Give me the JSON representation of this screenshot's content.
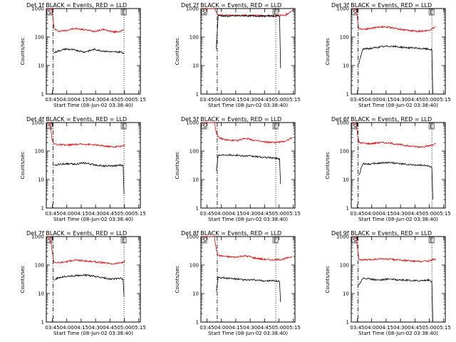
{
  "figure": {
    "start_time_label": "Start Time (08-Jun-02 03:38:40)",
    "ylabel": "Counts/sec",
    "marker_s": "S",
    "marker_e": "E",
    "x_ticks": [
      "03:45",
      "04:00",
      "04:15",
      "04:30",
      "04:45",
      "05:00",
      "05:15"
    ],
    "y_ticks": [
      "1",
      "10",
      "100",
      "1000"
    ],
    "colors": {
      "events": "#000000",
      "lld": "#e00000",
      "axes": "#000000"
    }
  },
  "chart_data": [
    {
      "type": "line",
      "title": "Det 1f BLACK = Events, RED = LLD",
      "xlabel": "Start Time (08-Jun-02 03:38:40)",
      "ylabel": "Counts/sec",
      "x_unit": "minutes after 03:38:40",
      "xlim": [
        0,
        98
      ],
      "ylim": [
        1,
        1000
      ],
      "log_y": true,
      "x_ticks": [
        "03:45",
        "04:00",
        "04:15",
        "04:30",
        "04:45",
        "05:00",
        "05:15"
      ],
      "markers": {
        "S": 7,
        "E": 81
      },
      "series": [
        {
          "name": "LLD",
          "x": [
            0,
            6,
            7,
            8,
            12,
            20,
            30,
            40,
            50,
            60,
            70,
            78,
            80,
            81
          ],
          "y": [
            1000,
            1000,
            450,
            200,
            160,
            170,
            200,
            180,
            160,
            185,
            150,
            160,
            175,
            180
          ]
        },
        {
          "name": "Events",
          "x": [
            8,
            12,
            20,
            30,
            40,
            50,
            60,
            70,
            78,
            80,
            81
          ],
          "y": [
            28,
            32,
            38,
            35,
            30,
            37,
            32,
            30,
            30,
            28,
            26
          ]
        }
      ]
    },
    {
      "type": "line",
      "title": "Det 2f BLACK = Events, RED = LLD",
      "xlabel": "Start Time (08-Jun-02 03:38:40)",
      "ylabel": "Counts/sec",
      "x_unit": "minutes after 03:38:40",
      "xlim": [
        0,
        98
      ],
      "ylim": [
        1,
        1000
      ],
      "log_y": true,
      "x_ticks": [
        "03:45",
        "04:00",
        "04:15",
        "04:30",
        "04:45",
        "05:00",
        "05:15"
      ],
      "markers": {
        "S": 17,
        "E": 78
      },
      "series": [
        {
          "name": "LLD",
          "x": [
            0,
            14,
            15,
            16,
            17,
            18,
            25,
            35,
            45,
            55,
            65,
            75,
            82,
            88,
            92,
            96
          ],
          "y": [
            1000,
            1000,
            900,
            700,
            620,
            600,
            580,
            570,
            580,
            570,
            560,
            560,
            560,
            600,
            700,
            900
          ]
        },
        {
          "name": "Events",
          "x": [
            16,
            18,
            25,
            35,
            45,
            55,
            65,
            75,
            80,
            82,
            83
          ],
          "y": [
            40,
            580,
            540,
            550,
            560,
            550,
            545,
            550,
            545,
            550,
            8
          ]
        }
      ]
    },
    {
      "type": "line",
      "title": "Det 3f BLACK = Events, RED = LLD",
      "xlabel": "Start Time (08-Jun-02 03:38:40)",
      "ylabel": "Counts/sec",
      "x_unit": "minutes after 03:38:40",
      "xlim": [
        0,
        98
      ],
      "ylim": [
        1,
        1000
      ],
      "log_y": true,
      "x_ticks": [
        "03:45",
        "04:00",
        "04:15",
        "04:30",
        "04:45",
        "05:00",
        "05:15"
      ],
      "markers": {
        "S": 7,
        "E": 84
      },
      "series": [
        {
          "name": "LLD",
          "x": [
            0,
            5,
            6,
            7,
            8,
            12,
            20,
            30,
            40,
            50,
            60,
            70,
            80,
            86,
            88
          ],
          "y": [
            1000,
            1000,
            600,
            300,
            200,
            190,
            200,
            230,
            220,
            190,
            170,
            160,
            170,
            210,
            230
          ]
        },
        {
          "name": "Events",
          "x": [
            8,
            12,
            20,
            30,
            40,
            50,
            60,
            70,
            80,
            84,
            85
          ],
          "y": [
            12,
            38,
            40,
            45,
            48,
            45,
            42,
            40,
            38,
            36,
            1
          ]
        }
      ]
    },
    {
      "type": "line",
      "title": "Det 4f BLACK = Events, RED = LLD",
      "xlabel": "Start Time (08-Jun-02 03:38:40)",
      "ylabel": "Counts/sec",
      "x_unit": "minutes after 03:38:40",
      "xlim": [
        0,
        98
      ],
      "ylim": [
        1,
        1000
      ],
      "log_y": true,
      "x_ticks": [
        "03:45",
        "04:00",
        "04:15",
        "04:30",
        "04:45",
        "05:00",
        "05:15"
      ],
      "markers": {
        "S": 7,
        "E": 81
      },
      "series": [
        {
          "name": "LLD",
          "x": [
            0,
            4,
            5,
            6,
            8,
            12,
            20,
            30,
            40,
            50,
            60,
            70,
            80,
            82
          ],
          "y": [
            1000,
            1000,
            500,
            250,
            180,
            170,
            160,
            170,
            175,
            165,
            150,
            140,
            150,
            160
          ]
        },
        {
          "name": "Events",
          "x": [
            8,
            12,
            20,
            30,
            40,
            50,
            60,
            70,
            78,
            80,
            81
          ],
          "y": [
            30,
            34,
            36,
            35,
            38,
            33,
            30,
            30,
            32,
            31,
            3
          ]
        }
      ]
    },
    {
      "type": "line",
      "title": "Det 5f BLACK = Events, RED = LLD",
      "xlabel": "Start Time (08-Jun-02 03:38:40)",
      "ylabel": "Counts/sec",
      "x_unit": "minutes after 03:38:40",
      "xlim": [
        0,
        98
      ],
      "ylim": [
        1,
        1000
      ],
      "log_y": true,
      "x_ticks": [
        "03:45",
        "04:00",
        "04:15",
        "04:30",
        "04:45",
        "05:00",
        "05:15"
      ],
      "markers": {
        "S": 17,
        "E": 78
      },
      "series": [
        {
          "name": "LLD",
          "x": [
            0,
            14,
            15,
            16,
            18,
            25,
            35,
            40,
            45,
            50,
            55,
            65,
            75,
            85,
            90,
            95
          ],
          "y": [
            1000,
            1000,
            700,
            450,
            300,
            250,
            230,
            240,
            280,
            270,
            240,
            210,
            200,
            210,
            240,
            300
          ]
        },
        {
          "name": "Events",
          "x": [
            16,
            18,
            25,
            35,
            45,
            55,
            65,
            75,
            80,
            82,
            83
          ],
          "y": [
            20,
            70,
            75,
            72,
            68,
            65,
            60,
            58,
            55,
            52,
            7
          ]
        }
      ]
    },
    {
      "type": "line",
      "title": "Det 6f BLACK = Events, RED = LLD",
      "xlabel": "Start Time (08-Jun-02 03:38:40)",
      "ylabel": "Counts/sec",
      "x_unit": "minutes after 03:38:40",
      "xlim": [
        0,
        98
      ],
      "ylim": [
        1,
        1000
      ],
      "log_y": true,
      "x_ticks": [
        "03:45",
        "04:00",
        "04:15",
        "04:30",
        "04:45",
        "05:00",
        "05:15"
      ],
      "markers": {
        "S": 7,
        "E": 84
      },
      "series": [
        {
          "name": "LLD",
          "x": [
            0,
            5,
            6,
            7,
            8,
            12,
            20,
            30,
            40,
            50,
            60,
            70,
            80,
            86,
            88
          ],
          "y": [
            1000,
            1000,
            550,
            300,
            200,
            190,
            180,
            200,
            190,
            170,
            150,
            140,
            150,
            170,
            180
          ]
        },
        {
          "name": "Events",
          "x": [
            8,
            12,
            20,
            30,
            40,
            50,
            60,
            70,
            80,
            84,
            85
          ],
          "y": [
            14,
            36,
            35,
            38,
            40,
            36,
            33,
            32,
            30,
            28,
            2
          ]
        }
      ]
    },
    {
      "type": "line",
      "title": "Det 7f BLACK = Events, RED = LLD",
      "xlabel": "Start Time (08-Jun-02 03:38:40)",
      "ylabel": "Counts/sec",
      "x_unit": "minutes after 03:38:40",
      "xlim": [
        0,
        98
      ],
      "ylim": [
        1,
        1000
      ],
      "log_y": true,
      "x_ticks": [
        "03:45",
        "04:00",
        "04:15",
        "04:30",
        "04:45",
        "05:00",
        "05:15"
      ],
      "markers": {
        "S": 7,
        "E": 81
      },
      "series": [
        {
          "name": "LLD",
          "x": [
            0,
            4,
            5,
            6,
            8,
            12,
            20,
            30,
            40,
            50,
            60,
            70,
            80,
            82
          ],
          "y": [
            1000,
            1000,
            600,
            300,
            130,
            120,
            130,
            150,
            140,
            130,
            120,
            110,
            125,
            130
          ]
        },
        {
          "name": "Events",
          "x": [
            8,
            12,
            20,
            30,
            40,
            50,
            60,
            70,
            78,
            80,
            81
          ],
          "y": [
            30,
            35,
            40,
            42,
            45,
            40,
            35,
            32,
            35,
            30,
            8
          ]
        }
      ]
    },
    {
      "type": "line",
      "title": "Det 8f BLACK = Events, RED = LLD",
      "xlabel": "Start Time (08-Jun-02 03:38:40)",
      "ylabel": "Counts/sec",
      "x_unit": "minutes after 03:38:40",
      "xlim": [
        0,
        98
      ],
      "ylim": [
        1,
        1000
      ],
      "log_y": true,
      "x_ticks": [
        "03:45",
        "04:00",
        "04:15",
        "04:30",
        "04:45",
        "05:00",
        "05:15"
      ],
      "markers": {
        "S": 17,
        "E": 78
      },
      "series": [
        {
          "name": "LLD",
          "x": [
            0,
            14,
            15,
            16,
            18,
            25,
            35,
            45,
            50,
            55,
            65,
            75,
            85,
            92,
            95
          ],
          "y": [
            1000,
            1000,
            600,
            350,
            220,
            200,
            190,
            210,
            200,
            180,
            160,
            150,
            160,
            185,
            200
          ]
        },
        {
          "name": "Events",
          "x": [
            16,
            18,
            25,
            35,
            45,
            55,
            65,
            75,
            80,
            82,
            83
          ],
          "y": [
            12,
            38,
            35,
            33,
            30,
            30,
            28,
            28,
            27,
            27,
            5
          ]
        }
      ]
    },
    {
      "type": "line",
      "title": "Det 9f BLACK = Events, RED = LLD",
      "xlabel": "Start Time (08-Jun-02 03:38:40)",
      "ylabel": "Counts/sec",
      "x_unit": "minutes after 03:38:40",
      "xlim": [
        0,
        98
      ],
      "ylim": [
        1,
        1000
      ],
      "log_y": true,
      "x_ticks": [
        "03:45",
        "04:00",
        "04:15",
        "04:30",
        "04:45",
        "05:00",
        "05:15"
      ],
      "markers": {
        "S": 7,
        "E": 84
      },
      "series": [
        {
          "name": "LLD",
          "x": [
            0,
            5,
            6,
            7,
            8,
            12,
            20,
            30,
            40,
            50,
            60,
            70,
            80,
            86,
            88
          ],
          "y": [
            1000,
            1000,
            550,
            300,
            160,
            150,
            155,
            165,
            160,
            150,
            140,
            135,
            140,
            155,
            160
          ]
        },
        {
          "name": "Events",
          "x": [
            8,
            12,
            20,
            30,
            40,
            50,
            60,
            70,
            80,
            84,
            85
          ],
          "y": [
            20,
            35,
            32,
            30,
            33,
            30,
            29,
            28,
            30,
            26,
            1
          ]
        }
      ]
    }
  ]
}
